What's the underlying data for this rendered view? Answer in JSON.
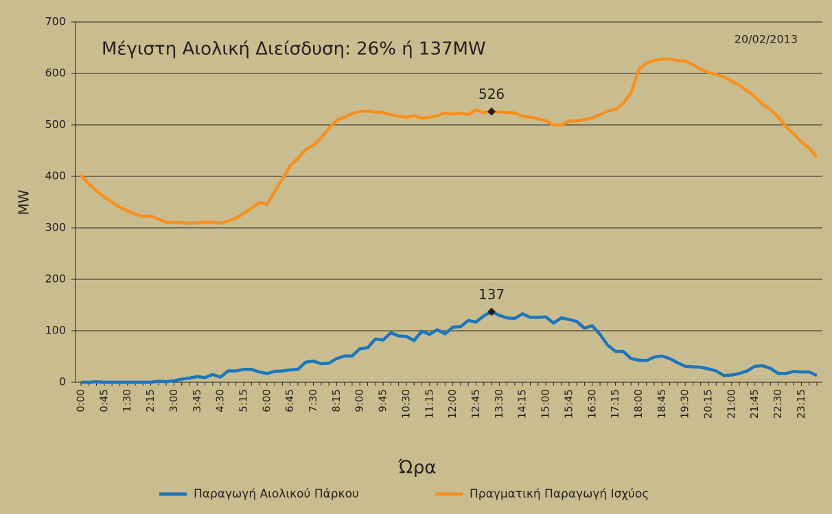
{
  "chart_data": {
    "type": "line",
    "title": "Μέγιστη Αιολική Διείσδυση: 26% ή 137MW",
    "subtitle": "20/02/2013",
    "y_label": "MW",
    "x_label": "Ώρα",
    "categories": [
      "0:00",
      null,
      null,
      "0:45",
      null,
      null,
      "1:30",
      null,
      null,
      "2:15",
      null,
      null,
      "3:00",
      null,
      null,
      "3:45",
      null,
      null,
      "4:30",
      null,
      null,
      "5:15",
      null,
      null,
      "6:00",
      null,
      null,
      "6:45",
      null,
      null,
      "7:30",
      null,
      null,
      "8:15",
      null,
      null,
      "9:00",
      null,
      null,
      "9:45",
      null,
      null,
      "10:30",
      null,
      null,
      "11:15",
      null,
      null,
      "12:00",
      null,
      null,
      "12:45",
      null,
      null,
      "13:30",
      null,
      null,
      "14:15",
      null,
      null,
      "15:00",
      null,
      null,
      "15:45",
      null,
      null,
      "16:30",
      null,
      null,
      "17:15",
      null,
      null,
      "18:00",
      null,
      null,
      "18:45",
      null,
      null,
      "19:30",
      null,
      null,
      "20:15",
      null,
      null,
      "21:00",
      null,
      null,
      "21:45",
      null,
      null,
      "22:30",
      null,
      null,
      "23:15",
      null,
      null
    ],
    "series": [
      {
        "name": "Παραγωγή Αιολικού Πάρκου",
        "color": "#1b75bc",
        "values": [
          0,
          0,
          1,
          0,
          0,
          0,
          0,
          0,
          0,
          0,
          2,
          1,
          3,
          6,
          8,
          11,
          9,
          15,
          10,
          22,
          22,
          25,
          25,
          20,
          17,
          21,
          22,
          24,
          25,
          39,
          41,
          36,
          37,
          46,
          51,
          51,
          65,
          67,
          84,
          82,
          96,
          90,
          89,
          81,
          99,
          93,
          102,
          94,
          107,
          108,
          120,
          117,
          129,
          137,
          130,
          125,
          124,
          133,
          126,
          126,
          127,
          115,
          125,
          122,
          118,
          105,
          110,
          93,
          72,
          60,
          60,
          46,
          43,
          42,
          49,
          51,
          46,
          38,
          31,
          30,
          29,
          26,
          22,
          13,
          14,
          17,
          22,
          31,
          32,
          27,
          17,
          17,
          21,
          20,
          20,
          13
        ],
        "value_labels": [
          null,
          null,
          null,
          null,
          null,
          null,
          null,
          null,
          null,
          null,
          null,
          null,
          null,
          null,
          null,
          null,
          null,
          null,
          null,
          null,
          null,
          null,
          null,
          null,
          null,
          null,
          null,
          null,
          null,
          null,
          null,
          null,
          null,
          null,
          null,
          null,
          null,
          null,
          null,
          null,
          null,
          null,
          null,
          null,
          null,
          null,
          null,
          null,
          null,
          null,
          null,
          null,
          null,
          "137",
          null,
          null,
          null,
          null,
          null,
          null,
          null,
          null,
          null,
          null,
          null,
          null,
          null,
          null,
          null,
          null,
          null,
          null,
          null,
          null,
          null,
          null,
          null,
          null,
          null,
          null,
          null,
          null,
          null,
          null,
          null,
          null,
          null,
          null,
          null,
          null,
          null,
          null,
          null,
          null,
          null,
          null
        ]
      },
      {
        "name": "Πραγματική Παραγωγή Ισχύος",
        "color": "#f7901e",
        "values": [
          403,
          385,
          372,
          360,
          350,
          340,
          333,
          327,
          322,
          323,
          317,
          311,
          311,
          310,
          309,
          310,
          311,
          311,
          309,
          313,
          319,
          328,
          338,
          349,
          346,
          370,
          395,
          420,
          435,
          452,
          460,
          475,
          493,
          509,
          515,
          522,
          526,
          527,
          525,
          524,
          520,
          517,
          515,
          518,
          513,
          515,
          518,
          523,
          521,
          523,
          520,
          529,
          524,
          526,
          525,
          524,
          523,
          517,
          515,
          512,
          508,
          500,
          500,
          507,
          508,
          510,
          514,
          520,
          527,
          530,
          542,
          562,
          608,
          620,
          625,
          628,
          628,
          625,
          624,
          617,
          608,
          602,
          598,
          593,
          585,
          577,
          566,
          555,
          540,
          530,
          515,
          497,
          482,
          467,
          455,
          437
        ],
        "value_labels": [
          null,
          null,
          null,
          null,
          null,
          null,
          null,
          null,
          null,
          null,
          null,
          null,
          null,
          null,
          null,
          null,
          null,
          null,
          null,
          null,
          null,
          null,
          null,
          null,
          null,
          null,
          null,
          null,
          null,
          null,
          null,
          null,
          null,
          null,
          null,
          null,
          null,
          null,
          null,
          null,
          null,
          null,
          null,
          null,
          null,
          null,
          null,
          null,
          null,
          null,
          null,
          null,
          null,
          "526",
          null,
          null,
          null,
          null,
          null,
          null,
          null,
          null,
          null,
          null,
          null,
          null,
          null,
          null,
          null,
          null,
          null,
          null,
          null,
          null,
          null,
          null,
          null,
          null,
          null,
          null,
          null,
          null,
          null,
          null,
          null,
          null,
          null,
          null,
          null,
          null,
          null,
          null,
          null,
          null,
          null,
          null
        ]
      }
    ],
    "ylim": [
      0,
      700
    ],
    "yticks": [
      0,
      100,
      200,
      300,
      400,
      500,
      600,
      700
    ],
    "grid": true,
    "legend": "bottom"
  }
}
